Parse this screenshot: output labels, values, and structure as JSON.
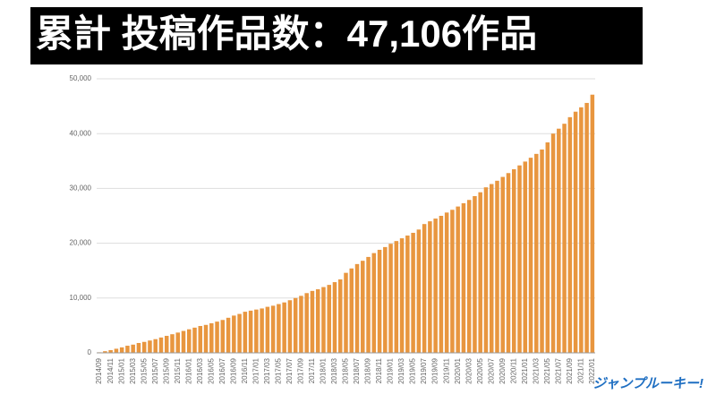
{
  "chart_data": {
    "type": "bar",
    "title": "累計 投稿作品数：47,106作品",
    "logo": "ジャンプルーキー!",
    "color": "#e8963f",
    "grid": true,
    "ylim": [
      0,
      50000
    ],
    "yticks": [
      0,
      {
        "value": 10000,
        "label": "10,000"
      },
      {
        "value": 20000,
        "label": "20,000"
      },
      {
        "value": 30000,
        "label": "30,000"
      },
      {
        "value": 40000,
        "label": "40,000"
      },
      {
        "value": 50000,
        "label": "50,000"
      }
    ],
    "categories": [
      "2014/09",
      null,
      "2014/11",
      null,
      "2015/01",
      null,
      "2015/03",
      null,
      "2015/05",
      null,
      "2015/07",
      null,
      "2015/09",
      null,
      "2015/11",
      null,
      "2016/01",
      null,
      "2016/03",
      null,
      "2016/05",
      null,
      "2016/07",
      null,
      "2016/09",
      null,
      "2016/11",
      null,
      "2017/01",
      null,
      "2017/03",
      null,
      "2017/05",
      null,
      "2017/07",
      null,
      "2017/09",
      null,
      "2017/11",
      null,
      "2018/01",
      null,
      "2018/03",
      null,
      "2018/05",
      null,
      "2018/07",
      null,
      "2018/09",
      null,
      "2018/11",
      null,
      "2019/01",
      null,
      "2019/03",
      null,
      "2019/05",
      null,
      "2019/07",
      null,
      "2019/09",
      null,
      "2019/11",
      null,
      "2020/01",
      null,
      "2020/03",
      null,
      "2020/05",
      null,
      "2020/07",
      null,
      "2020/09",
      null,
      "2020/11",
      null,
      "2021/01",
      null,
      "2021/03",
      null,
      "2021/05",
      null,
      "2021/07",
      null,
      "2021/09",
      null,
      "2021/11",
      null,
      "2022/01"
    ],
    "values": [
      100,
      300,
      500,
      750,
      1000,
      1300,
      1500,
      1800,
      2000,
      2250,
      2500,
      2800,
      3100,
      3400,
      3700,
      4000,
      4300,
      4600,
      4900,
      5100,
      5400,
      5700,
      6000,
      6400,
      6800,
      7100,
      7500,
      7700,
      7900,
      8100,
      8400,
      8600,
      8900,
      9200,
      9600,
      10000,
      10400,
      10900,
      11300,
      11600,
      12000,
      12400,
      12900,
      13400,
      14600,
      15400,
      16200,
      16800,
      17500,
      18200,
      18800,
      19300,
      19900,
      20400,
      20900,
      21400,
      21900,
      22500,
      23500,
      24000,
      24500,
      25000,
      25600,
      26100,
      26700,
      27300,
      27900,
      28600,
      29300,
      30200,
      30800,
      31400,
      32100,
      32800,
      33500,
      34200,
      34900,
      35600,
      36300,
      37100,
      38400,
      40000,
      40900,
      41800,
      43000,
      44000,
      44800,
      45600,
      47106
    ]
  }
}
